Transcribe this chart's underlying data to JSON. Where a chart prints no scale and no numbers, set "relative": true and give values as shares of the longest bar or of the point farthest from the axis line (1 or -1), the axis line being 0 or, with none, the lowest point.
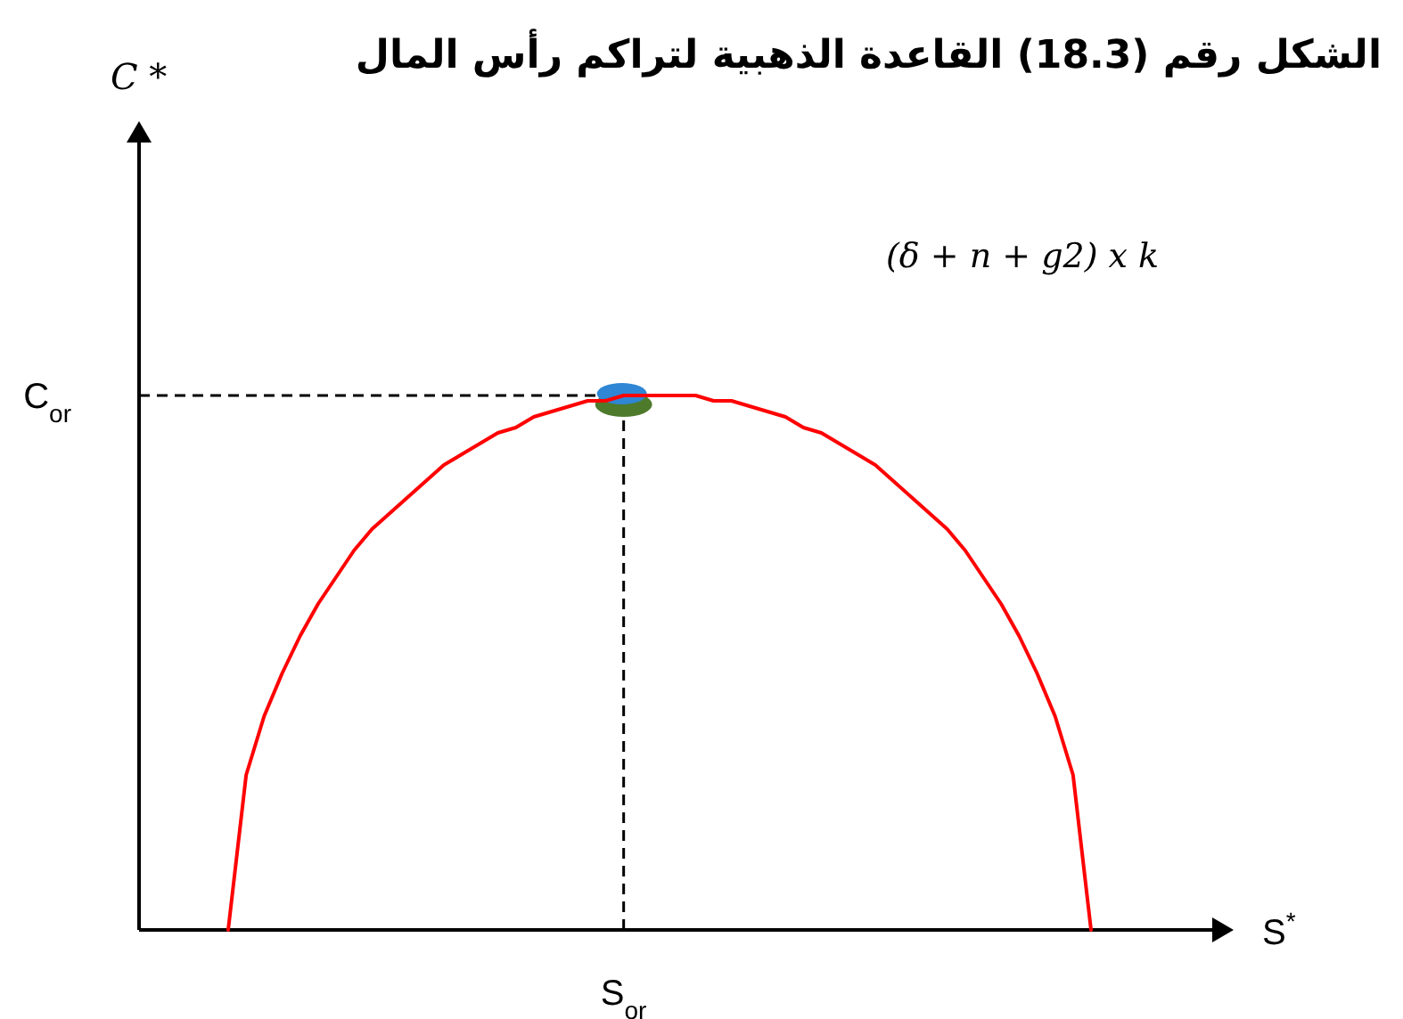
{
  "chart_data": {
    "type": "line",
    "relative": true,
    "title": "الشكل رقم (18.3) القاعدة الذهبية لتراكم رأس المال",
    "xlabel": "S$^{*}$",
    "categories": [
      null,
      null,
      null,
      null,
      null,
      null,
      null,
      null,
      null,
      null,
      null,
      null,
      null,
      null,
      null,
      null,
      null,
      null,
      null,
      null,
      null,
      null,
      null,
      null,
      null,
      null,
      null,
      null,
      null,
      null,
      null,
      null,
      null,
      null,
      null,
      null,
      null,
      null,
      null,
      null,
      null,
      null,
      null,
      null,
      null,
      null,
      null,
      null,
      null
    ],
    "series": [
      {
        "color": "#ff0000",
        "values": [
          0,
          0.29,
          0.4,
          0.48,
          0.55,
          0.61,
          0.66,
          0.71,
          0.75,
          0.78,
          0.81,
          0.84,
          0.87,
          0.89,
          0.91,
          0.93,
          0.94,
          0.96,
          0.97,
          0.98,
          0.99,
          0.99,
          1,
          1,
          1,
          1,
          1,
          0.99,
          0.99,
          0.98,
          0.97,
          0.96,
          0.94,
          0.93,
          0.91,
          0.89,
          0.87,
          0.84,
          0.81,
          0.78,
          0.75,
          0.71,
          0.66,
          0.61,
          0.55,
          0.48,
          0.4,
          0.29,
          0
        ]
      }
    ],
    "annotations": [
      "S$_{or}$",
      "(δ + n + g2) x k",
      "C *"
    ],
    "ref_lines": [
      {
        "axis": "y",
        "value": 1,
        "label": "C$_{or}$",
        "line_style": "dashed",
        "color": "#000000"
      }
    ]
  }
}
